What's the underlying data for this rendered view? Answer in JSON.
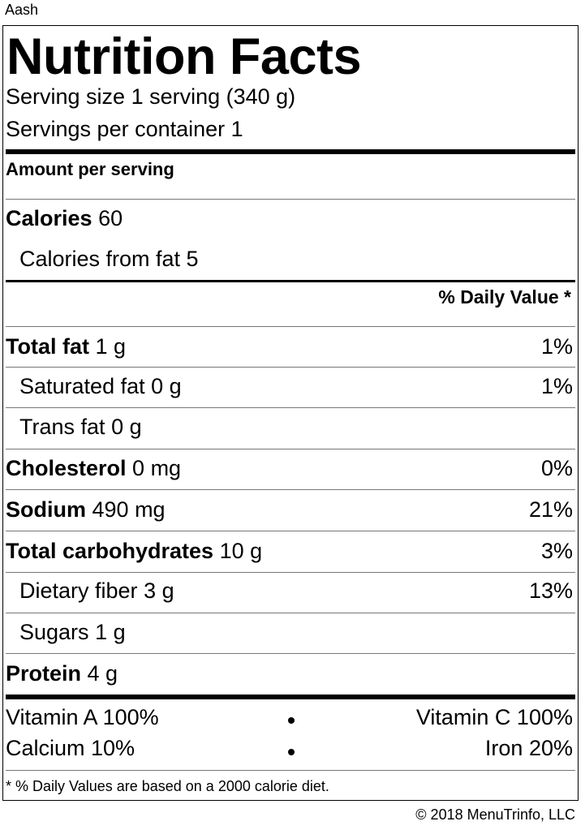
{
  "food_name": "Aash",
  "label": {
    "title": "Nutrition Facts",
    "serving_size": "Serving size 1 serving (340 g)",
    "servings_per_container": "Servings per container 1",
    "amount_per_serving": "Amount per serving",
    "calories": {
      "label": "Calories",
      "value": "60"
    },
    "calories_from_fat": "Calories from fat 5",
    "daily_value_header": "% Daily Value *",
    "nutrients": [
      {
        "name": "Total fat",
        "amount": "1 g",
        "dv": "1%"
      },
      {
        "name": "Saturated fat",
        "amount": "0 g",
        "dv": "1%"
      },
      {
        "name": "Trans fat",
        "amount": "0 g",
        "dv": ""
      },
      {
        "name": "Cholesterol",
        "amount": "0 mg",
        "dv": "0%"
      },
      {
        "name": "Sodium",
        "amount": "490 mg",
        "dv": "21%"
      },
      {
        "name": "Total carbohydrates",
        "amount": "10 g",
        "dv": "3%"
      },
      {
        "name": "Dietary fiber",
        "amount": "3 g",
        "dv": "13%"
      },
      {
        "name": "Sugars",
        "amount": "1 g",
        "dv": ""
      },
      {
        "name": "Protein",
        "amount": "4 g",
        "dv": ""
      }
    ],
    "vitamins": [
      {
        "left": "Vitamin A 100%",
        "right": "Vitamin C 100%"
      },
      {
        "left": "Calcium 10%",
        "right": "Iron 20%"
      }
    ],
    "footnote": "* % Daily Values are based on a 2000 calorie diet."
  },
  "copyright": "© 2018 MenuTrinfo, LLC"
}
